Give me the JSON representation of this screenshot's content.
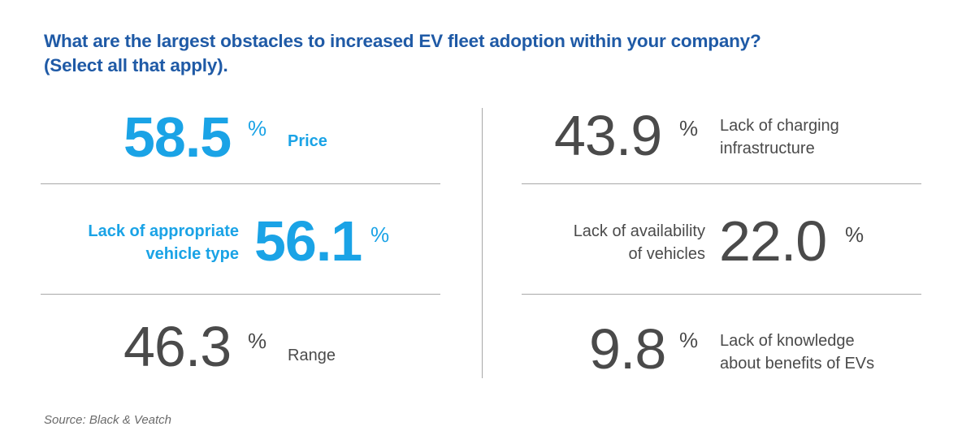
{
  "chart_data": {
    "type": "table",
    "title_lines": [
      "What are the largest obstacles to increased EV fleet adoption within your company?",
      "(Select all that apply)."
    ],
    "unit": "%",
    "items": [
      {
        "value": "58.5",
        "label_lines": [
          "Price"
        ],
        "highlight": true
      },
      {
        "value": "56.1",
        "label_lines": [
          "Lack of appropriate",
          "vehicle type"
        ],
        "highlight": true
      },
      {
        "value": "46.3",
        "label_lines": [
          "Range"
        ],
        "highlight": false
      },
      {
        "value": "43.9",
        "label_lines": [
          "Lack of charging",
          "infrastructure"
        ],
        "highlight": false
      },
      {
        "value": "22.0",
        "label_lines": [
          "Lack of availability",
          "of vehicles"
        ],
        "highlight": false
      },
      {
        "value": "9.8",
        "label_lines": [
          "Lack of knowledge",
          "about benefits of EVs"
        ],
        "highlight": false
      }
    ],
    "source": "Source: Black & Veatch",
    "colors": {
      "title": "#1f5aa6",
      "highlight": "#1aa3e6",
      "normal": "#4a4a4a",
      "rule": "#a8a8a8"
    }
  }
}
